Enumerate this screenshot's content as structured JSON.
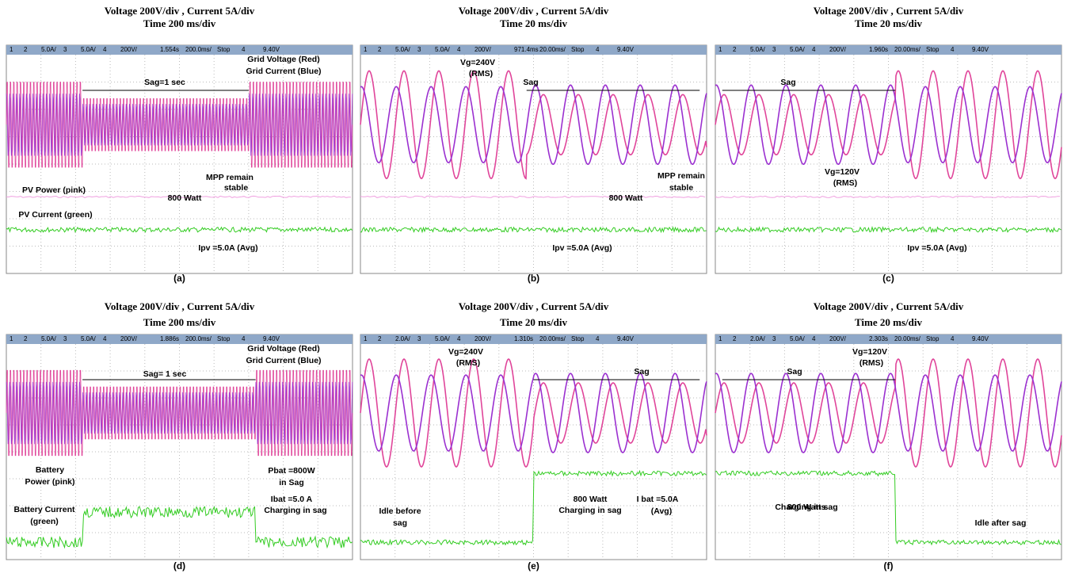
{
  "panels": [
    {
      "title_line1": "Voltage 200V/div , Current 5A/div",
      "title_line2": "Time 200 ms/div",
      "status": [
        "1",
        "2",
        "5.0A/",
        "3",
        "5.0A/",
        "4",
        "200V/",
        "1.554s",
        "200.0ms/",
        "Stop",
        "4",
        "9.40V"
      ],
      "annotations": [
        "Grid Voltage (Red)",
        "Grid Current (Blue)",
        "Sag=1 sec",
        "PV Power (pink)",
        "800 Watt",
        "MPP remain",
        "stable",
        "PV Current (green)",
        "Ipv =5.0A (Avg)"
      ],
      "caption": "(a)"
    },
    {
      "title_line1": "Voltage 200V/div , Current 5A/div",
      "title_line2": "Time 20 ms/div",
      "status": [
        "1",
        "2",
        "5.0A/",
        "3",
        "5.0A/",
        "4",
        "200V/",
        "971.4ms",
        "20.00ms/",
        "Stop",
        "4",
        "9.40V"
      ],
      "annotations": [
        "Vg=240V",
        "(RMS)",
        "Sag",
        "800 Watt",
        "MPP remain",
        "stable",
        "Ipv =5.0A (Avg)"
      ],
      "caption": "(b)"
    },
    {
      "title_line1": "Voltage 200V/div , Current 5A/div",
      "title_line2": "Time 20 ms/div",
      "status": [
        "1",
        "2",
        "5.0A/",
        "3",
        "5.0A/",
        "4",
        "200V/",
        "1.960s",
        "20.00ms/",
        "Stop",
        "4",
        "9.40V"
      ],
      "annotations": [
        "Sag",
        "Vg=120V",
        "(RMS)",
        "Ipv =5.0A (Avg)"
      ],
      "caption": "(c)"
    },
    {
      "title_line1": "Voltage 200V/div , Current 5A/div",
      "title_line2": "Time 200 ms/div",
      "status": [
        "1",
        "2",
        "5.0A/",
        "3",
        "5.0A/",
        "4",
        "200V/",
        "1.886s",
        "200.0ms/",
        "Stop",
        "4",
        "9.40V"
      ],
      "annotations": [
        "Grid Voltage (Red)",
        "Grid Current (Blue)",
        "Sag= 1 sec",
        "Battery",
        "Power (pink)",
        "Pbat =800W",
        "in Sag",
        "Ibat =5.0 A",
        "Charging in sag",
        "Battery Current",
        "(green)"
      ],
      "caption": "(d)"
    },
    {
      "title_line1": "Voltage 200V/div , Current 5A/div",
      "title_line2": "Time 20 ms/div",
      "status": [
        "1",
        "2",
        "2.0A/",
        "3",
        "5.0A/",
        "4",
        "200V/",
        "1.310s",
        "20.00ms/",
        "Stop",
        "4",
        "9.40V"
      ],
      "annotations": [
        "Vg=240V",
        "(RMS)",
        "Sag",
        "Idle before",
        "sag",
        "800 Watt",
        "Charging in sag",
        "I bat =5.0A",
        "(Avg)"
      ],
      "caption": "(e)"
    },
    {
      "title_line1": "Voltage 200V/div , Current 5A/div",
      "title_line2": "Time 20 ms/div",
      "status": [
        "1",
        "2",
        "2.0A/",
        "3",
        "5.0A/",
        "4",
        "200V/",
        "2.303s",
        "20.00ms/",
        "Stop",
        "4",
        "9.40V"
      ],
      "annotations": [
        "Vg=120V",
        "(RMS)",
        "Sag",
        "Charging in sag",
        "800 Watts",
        "Idle after sag"
      ],
      "caption": "(f)"
    }
  ]
}
